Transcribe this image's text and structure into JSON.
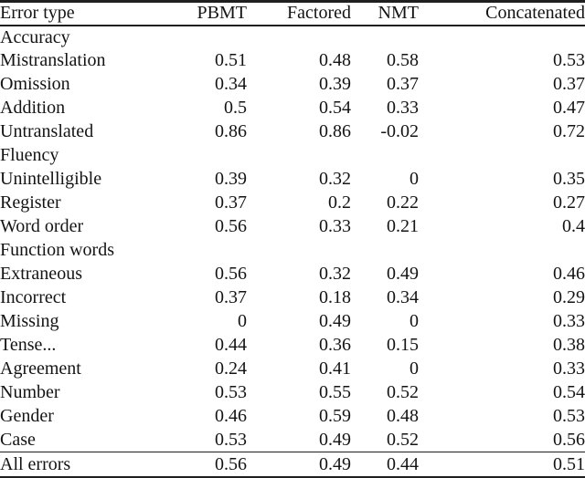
{
  "page": {
    "background": "#ffffff",
    "text_color": "#141414",
    "rule_color": "#1f1f1f"
  },
  "table": {
    "columns": [
      {
        "label": "Error type",
        "align": "left"
      },
      {
        "label": "PBMT",
        "align": "right"
      },
      {
        "label": "Factored",
        "align": "right"
      },
      {
        "label": "NMT",
        "align": "right"
      },
      {
        "label": "Concatenated",
        "align": "right"
      }
    ],
    "rows": [
      {
        "label": "Accuracy",
        "indent": 0,
        "values": [
          "",
          "",
          "",
          ""
        ],
        "bold": [
          false,
          false,
          false,
          false
        ]
      },
      {
        "label": "Mistranslation",
        "indent": 1,
        "values": [
          "0.51",
          "0.48",
          "0.58",
          "0.53"
        ],
        "bold": [
          false,
          false,
          true,
          false
        ]
      },
      {
        "label": "Omission",
        "indent": 1,
        "values": [
          "0.34",
          "0.39",
          "0.37",
          "0.37"
        ],
        "bold": [
          false,
          false,
          false,
          false
        ]
      },
      {
        "label": "Addition",
        "indent": 1,
        "values": [
          "0.5",
          "0.54",
          "0.33",
          "0.47"
        ],
        "bold": [
          false,
          false,
          false,
          false
        ]
      },
      {
        "label": "Untranslated",
        "indent": 1,
        "values": [
          "0.86",
          "0.86",
          "-0.02",
          "0.72"
        ],
        "bold": [
          true,
          true,
          false,
          true
        ]
      },
      {
        "label": "Fluency",
        "indent": 0,
        "values": [
          "",
          "",
          "",
          ""
        ],
        "bold": [
          false,
          false,
          false,
          false
        ]
      },
      {
        "label": "Unintelligible",
        "indent": 1,
        "values": [
          "0.39",
          "0.32",
          "0",
          "0.35"
        ],
        "bold": [
          false,
          false,
          false,
          false
        ]
      },
      {
        "label": "Register",
        "indent": 1,
        "values": [
          "0.37",
          "0.2",
          "0.22",
          "0.27"
        ],
        "bold": [
          false,
          false,
          false,
          false
        ]
      },
      {
        "label": "Word order",
        "indent": 1,
        "values": [
          "0.56",
          "0.33",
          "0.21",
          "0.4"
        ],
        "bold": [
          false,
          false,
          false,
          false
        ]
      },
      {
        "label": "Function words",
        "indent": 1,
        "values": [
          "",
          "",
          "",
          ""
        ],
        "bold": [
          false,
          false,
          false,
          false
        ]
      },
      {
        "label": "Extraneous",
        "indent": 2,
        "values": [
          "0.56",
          "0.32",
          "0.49",
          "0.46"
        ],
        "bold": [
          false,
          false,
          false,
          false
        ]
      },
      {
        "label": "Incorrect",
        "indent": 2,
        "values": [
          "0.37",
          "0.18",
          "0.34",
          "0.29"
        ],
        "bold": [
          false,
          false,
          false,
          false
        ]
      },
      {
        "label": "Missing",
        "indent": 2,
        "values": [
          "0",
          "0.49",
          "0",
          "0.33"
        ],
        "bold": [
          false,
          false,
          false,
          false
        ]
      },
      {
        "label": "Tense...",
        "indent": 1,
        "values": [
          "0.44",
          "0.36",
          "0.15",
          "0.38"
        ],
        "bold": [
          false,
          false,
          false,
          false
        ]
      },
      {
        "label": "Agreement",
        "indent": 1,
        "values": [
          "0.24",
          "0.41",
          "0",
          "0.33"
        ],
        "bold": [
          false,
          false,
          false,
          false
        ]
      },
      {
        "label": "Number",
        "indent": 2,
        "values": [
          "0.53",
          "0.55",
          "0.52",
          "0.54"
        ],
        "bold": [
          false,
          false,
          false,
          false
        ]
      },
      {
        "label": "Gender",
        "indent": 2,
        "values": [
          "0.46",
          "0.59",
          "0.48",
          "0.53"
        ],
        "bold": [
          false,
          false,
          false,
          false
        ]
      },
      {
        "label": "Case",
        "indent": 2,
        "values": [
          "0.53",
          "0.49",
          "0.52",
          "0.56"
        ],
        "bold": [
          false,
          false,
          false,
          false
        ]
      }
    ],
    "footer": {
      "label": "All errors",
      "values": [
        "0.56",
        "0.49",
        "0.44",
        "0.51"
      ]
    }
  }
}
